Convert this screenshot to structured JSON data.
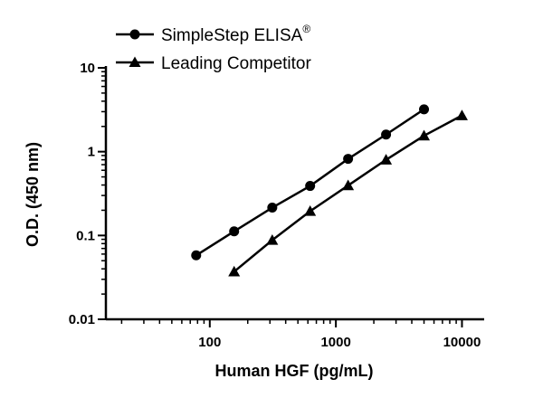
{
  "chart_data": {
    "type": "line",
    "xlabel": "Human HGF (pg/mL)",
    "ylabel": "O.D. (450 nm)",
    "x_scale": "log",
    "y_scale": "log",
    "xlim": [
      15,
      15000
    ],
    "ylim": [
      0.01,
      10
    ],
    "x_ticks": [
      {
        "value": 100,
        "label": "100"
      },
      {
        "value": 1000,
        "label": "1000"
      },
      {
        "value": 10000,
        "label": "10000"
      }
    ],
    "y_ticks": [
      {
        "value": 0.01,
        "label": "0.01"
      },
      {
        "value": 0.1,
        "label": "0.1"
      },
      {
        "value": 1,
        "label": "1"
      },
      {
        "value": 10,
        "label": "10"
      }
    ],
    "grid": false,
    "legend_position": "top-left",
    "series": [
      {
        "name": "SimpleStep ELISA",
        "name_superscript": "®",
        "marker": "circle",
        "color": "#000000",
        "x": [
          78,
          156,
          313,
          625,
          1250,
          2500,
          5000
        ],
        "y": [
          0.058,
          0.112,
          0.215,
          0.39,
          0.82,
          1.6,
          3.2
        ]
      },
      {
        "name": "Leading Competitor",
        "marker": "triangle",
        "color": "#000000",
        "x": [
          156,
          313,
          625,
          1250,
          2500,
          5000,
          10000
        ],
        "y": [
          0.037,
          0.088,
          0.195,
          0.395,
          0.8,
          1.55,
          2.7
        ]
      }
    ]
  }
}
